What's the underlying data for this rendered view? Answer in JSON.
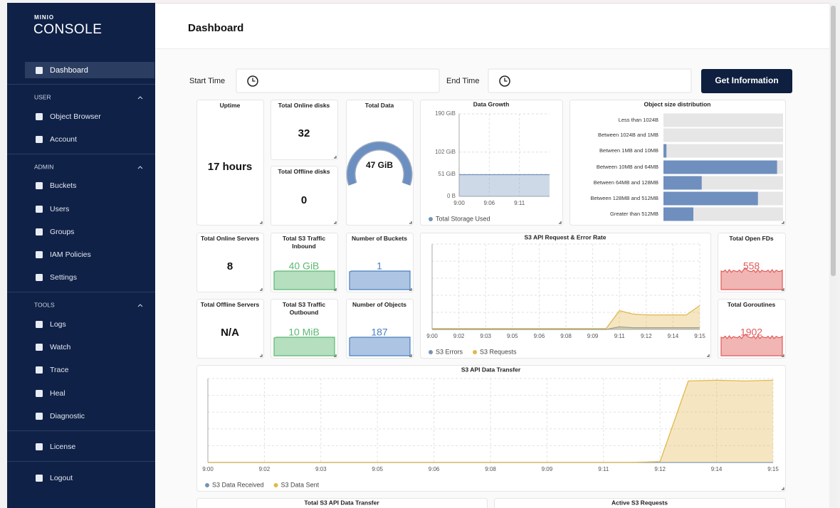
{
  "sidebar": {
    "logo_small": "MINIO",
    "logo": "CONSOLE",
    "active": "Dashboard",
    "sections": [
      {
        "title": "USER",
        "items": [
          "Object Browser",
          "Account"
        ]
      },
      {
        "title": "ADMIN",
        "items": [
          "Buckets",
          "Users",
          "Groups",
          "IAM Policies",
          "Settings"
        ]
      },
      {
        "title": "TOOLS",
        "items": [
          "Logs",
          "Watch",
          "Trace",
          "Heal",
          "Diagnostic"
        ]
      }
    ],
    "license": "License",
    "logout": "Logout"
  },
  "header": {
    "title": "Dashboard"
  },
  "filters": {
    "start_label": "Start Time",
    "end_label": "End Time",
    "button": "Get Information"
  },
  "stats": [
    {
      "title": "Uptime",
      "value": "17 hours"
    },
    {
      "title": "Total Online disks",
      "value": 32
    },
    {
      "title": "Total Offline disks",
      "value": 0
    },
    {
      "title": "Total Data",
      "value": "47 GiB"
    },
    {
      "title": "Total Online Servers",
      "value": 8
    },
    {
      "title": "Total Offline Servers",
      "value": "N/A"
    },
    {
      "title": "Total S3 Traffic Inbound",
      "value": "40 GiB",
      "color": "#5cb872"
    },
    {
      "title": "Total S3 Traffic Outbound",
      "value": "10 MiB",
      "color": "#5cb872"
    },
    {
      "title": "Number of Buckets",
      "value": 1,
      "color": "#4a7fc0"
    },
    {
      "title": "Number of Objects",
      "value": 187,
      "color": "#4a7fc0"
    },
    {
      "title": "Total Open FDs",
      "value": 558,
      "color": "#e05a58"
    },
    {
      "title": "Total Goroutines",
      "value": 1902,
      "color": "#e05a58"
    }
  ],
  "chart_data": [
    {
      "type": "line",
      "title": "Data Growth",
      "categories": [
        "9:00",
        "9:06",
        "9:11",
        null
      ],
      "series": [
        {
          "name": "Total Storage Used",
          "color": "#7393b9",
          "values": [
            50,
            50,
            50,
            50
          ]
        }
      ],
      "ylim": [
        0,
        190
      ],
      "yticks": [
        {
          "value": 190,
          "label": "190 GiB"
        },
        {
          "value": 102,
          "label": "102 GiB"
        },
        {
          "value": 51,
          "label": "51 GiB"
        },
        {
          "value": 0,
          "label": "0 B"
        }
      ],
      "area": true,
      "grid": true,
      "legend": "bottom-left"
    },
    {
      "type": "hbar",
      "title": "Object size distribution",
      "categories": [
        "Less than 1024B",
        "Between 1024B and 1MB",
        "Between 1MB and 10MB",
        "Between 10MB and 64MB",
        "Between 64MB and 128MB",
        "Between 128MB and 512MB",
        "Greater than 512MB"
      ],
      "values": [
        0,
        0,
        2.5,
        95,
        32,
        79,
        25
      ],
      "xlim": [
        0,
        100
      ],
      "color": "#6f8fbe"
    },
    {
      "type": "line",
      "title": "S3 API Request & Error Rate",
      "categories": [
        "9:00",
        null,
        "9:02",
        null,
        "9:03",
        null,
        "9:05",
        null,
        "9:06",
        null,
        "9:08",
        null,
        "9:09",
        null,
        "9:11",
        null,
        "9:12",
        null,
        "9:14",
        null,
        "9:15"
      ],
      "series": [
        {
          "name": "S3 Errors",
          "color": "#7393b9",
          "values": [
            0,
            0,
            0,
            0,
            0,
            0,
            0,
            0,
            0,
            0,
            0,
            0,
            0,
            0,
            3,
            2,
            2,
            2,
            2,
            2,
            2
          ]
        },
        {
          "name": "S3 Requests",
          "color": "#e2b84c",
          "values": [
            1,
            1,
            1,
            1,
            1,
            1,
            1,
            1,
            1,
            1,
            1,
            1,
            1,
            1,
            22,
            18,
            17,
            17,
            17,
            17,
            28
          ]
        }
      ],
      "ylim": [
        0,
        100
      ],
      "area": true,
      "grid": true,
      "legend": "bottom-left"
    },
    {
      "type": "line",
      "title": "S3 API Data Transfer",
      "categories": [
        "9:00",
        null,
        "9:02",
        null,
        "9:03",
        null,
        "9:05",
        null,
        "9:06",
        null,
        "9:08",
        null,
        "9:09",
        null,
        "9:11",
        null,
        "9:12",
        null,
        "9:14",
        null,
        "9:15"
      ],
      "series": [
        {
          "name": "S3 Data Received",
          "color": "#7393b9",
          "values": [
            0,
            0,
            0,
            0,
            0,
            0,
            0,
            0,
            0,
            0,
            0,
            0,
            0,
            0,
            0,
            0,
            0,
            0,
            0,
            0,
            0
          ]
        },
        {
          "name": "S3 Data Sent",
          "color": "#e2b84c",
          "values": [
            0,
            0,
            0,
            0,
            0,
            0,
            0,
            0,
            0,
            0,
            0,
            0,
            0,
            0,
            0,
            0,
            1,
            97,
            98,
            97,
            98
          ]
        }
      ],
      "ylim": [
        0,
        100
      ],
      "area": true,
      "grid": true,
      "legend": "bottom-left"
    }
  ],
  "footer_panels": [
    "Total S3 API Data Transfer",
    "Active S3 Requests"
  ]
}
